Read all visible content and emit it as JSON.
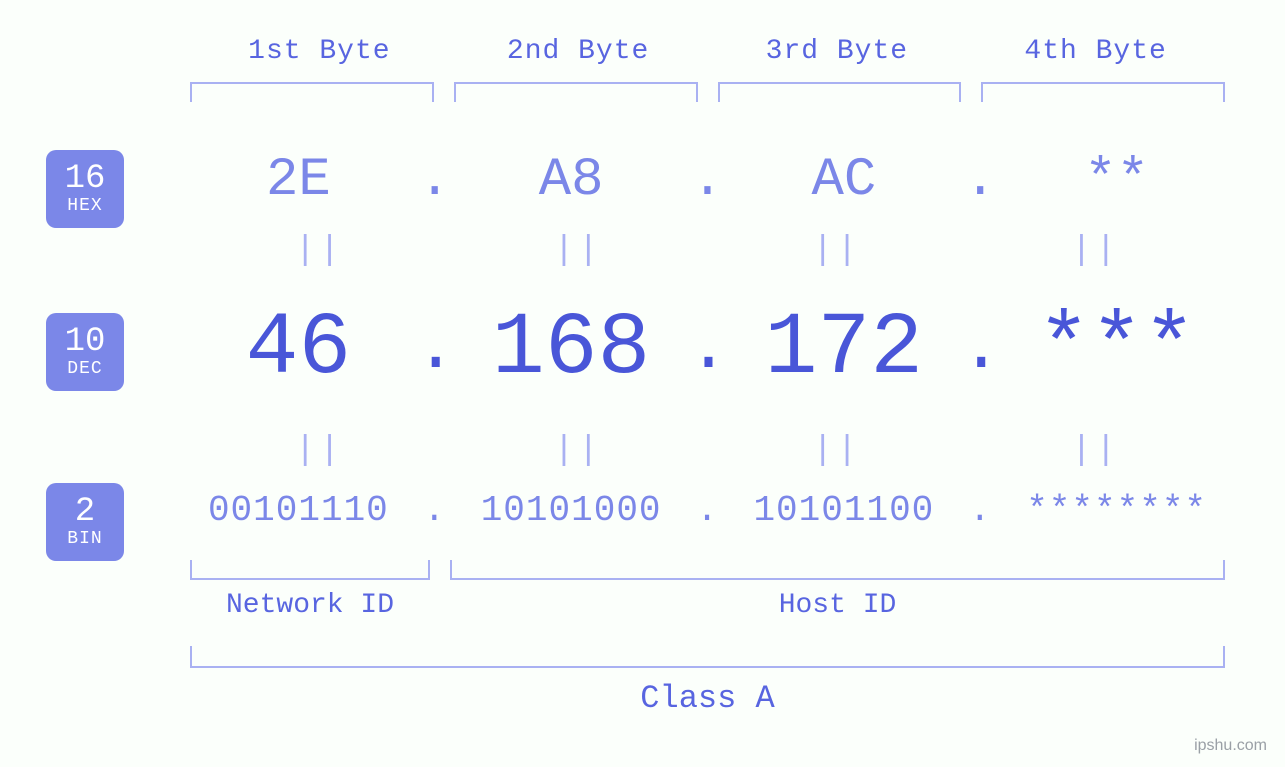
{
  "colors": {
    "background": "#fbfffb",
    "primary": "#5865e0",
    "primary_dark": "#4956d8",
    "primary_light": "#7b87e8",
    "bracket": "#a9b1f2",
    "badge_bg": "#7b87e8",
    "badge_fg": "#ffffff",
    "watermark": "#9aa0a6"
  },
  "font_family": "Courier New, monospace",
  "byte_headers": [
    "1st Byte",
    "2nd Byte",
    "3rd Byte",
    "4th Byte"
  ],
  "bases": {
    "hex": {
      "num": "16",
      "abbr": "HEX",
      "fontsize": 54
    },
    "dec": {
      "num": "10",
      "abbr": "DEC",
      "fontsize": 88
    },
    "bin": {
      "num": "2",
      "abbr": "BIN",
      "fontsize": 36
    }
  },
  "separator": ".",
  "equals_glyph": "||",
  "bytes": [
    {
      "hex": "2E",
      "dec": "46",
      "bin": "00101110"
    },
    {
      "hex": "A8",
      "dec": "168",
      "bin": "10101000"
    },
    {
      "hex": "AC",
      "dec": "172",
      "bin": "10101100"
    },
    {
      "hex": "**",
      "dec": "***",
      "bin": "********"
    }
  ],
  "groups": {
    "network": {
      "label": "Network ID",
      "byte_span": [
        0,
        0
      ]
    },
    "host": {
      "label": "Host ID",
      "byte_span": [
        1,
        3
      ]
    },
    "class": {
      "label": "Class A",
      "byte_span": [
        0,
        3
      ]
    }
  },
  "watermark": "ipshu.com"
}
